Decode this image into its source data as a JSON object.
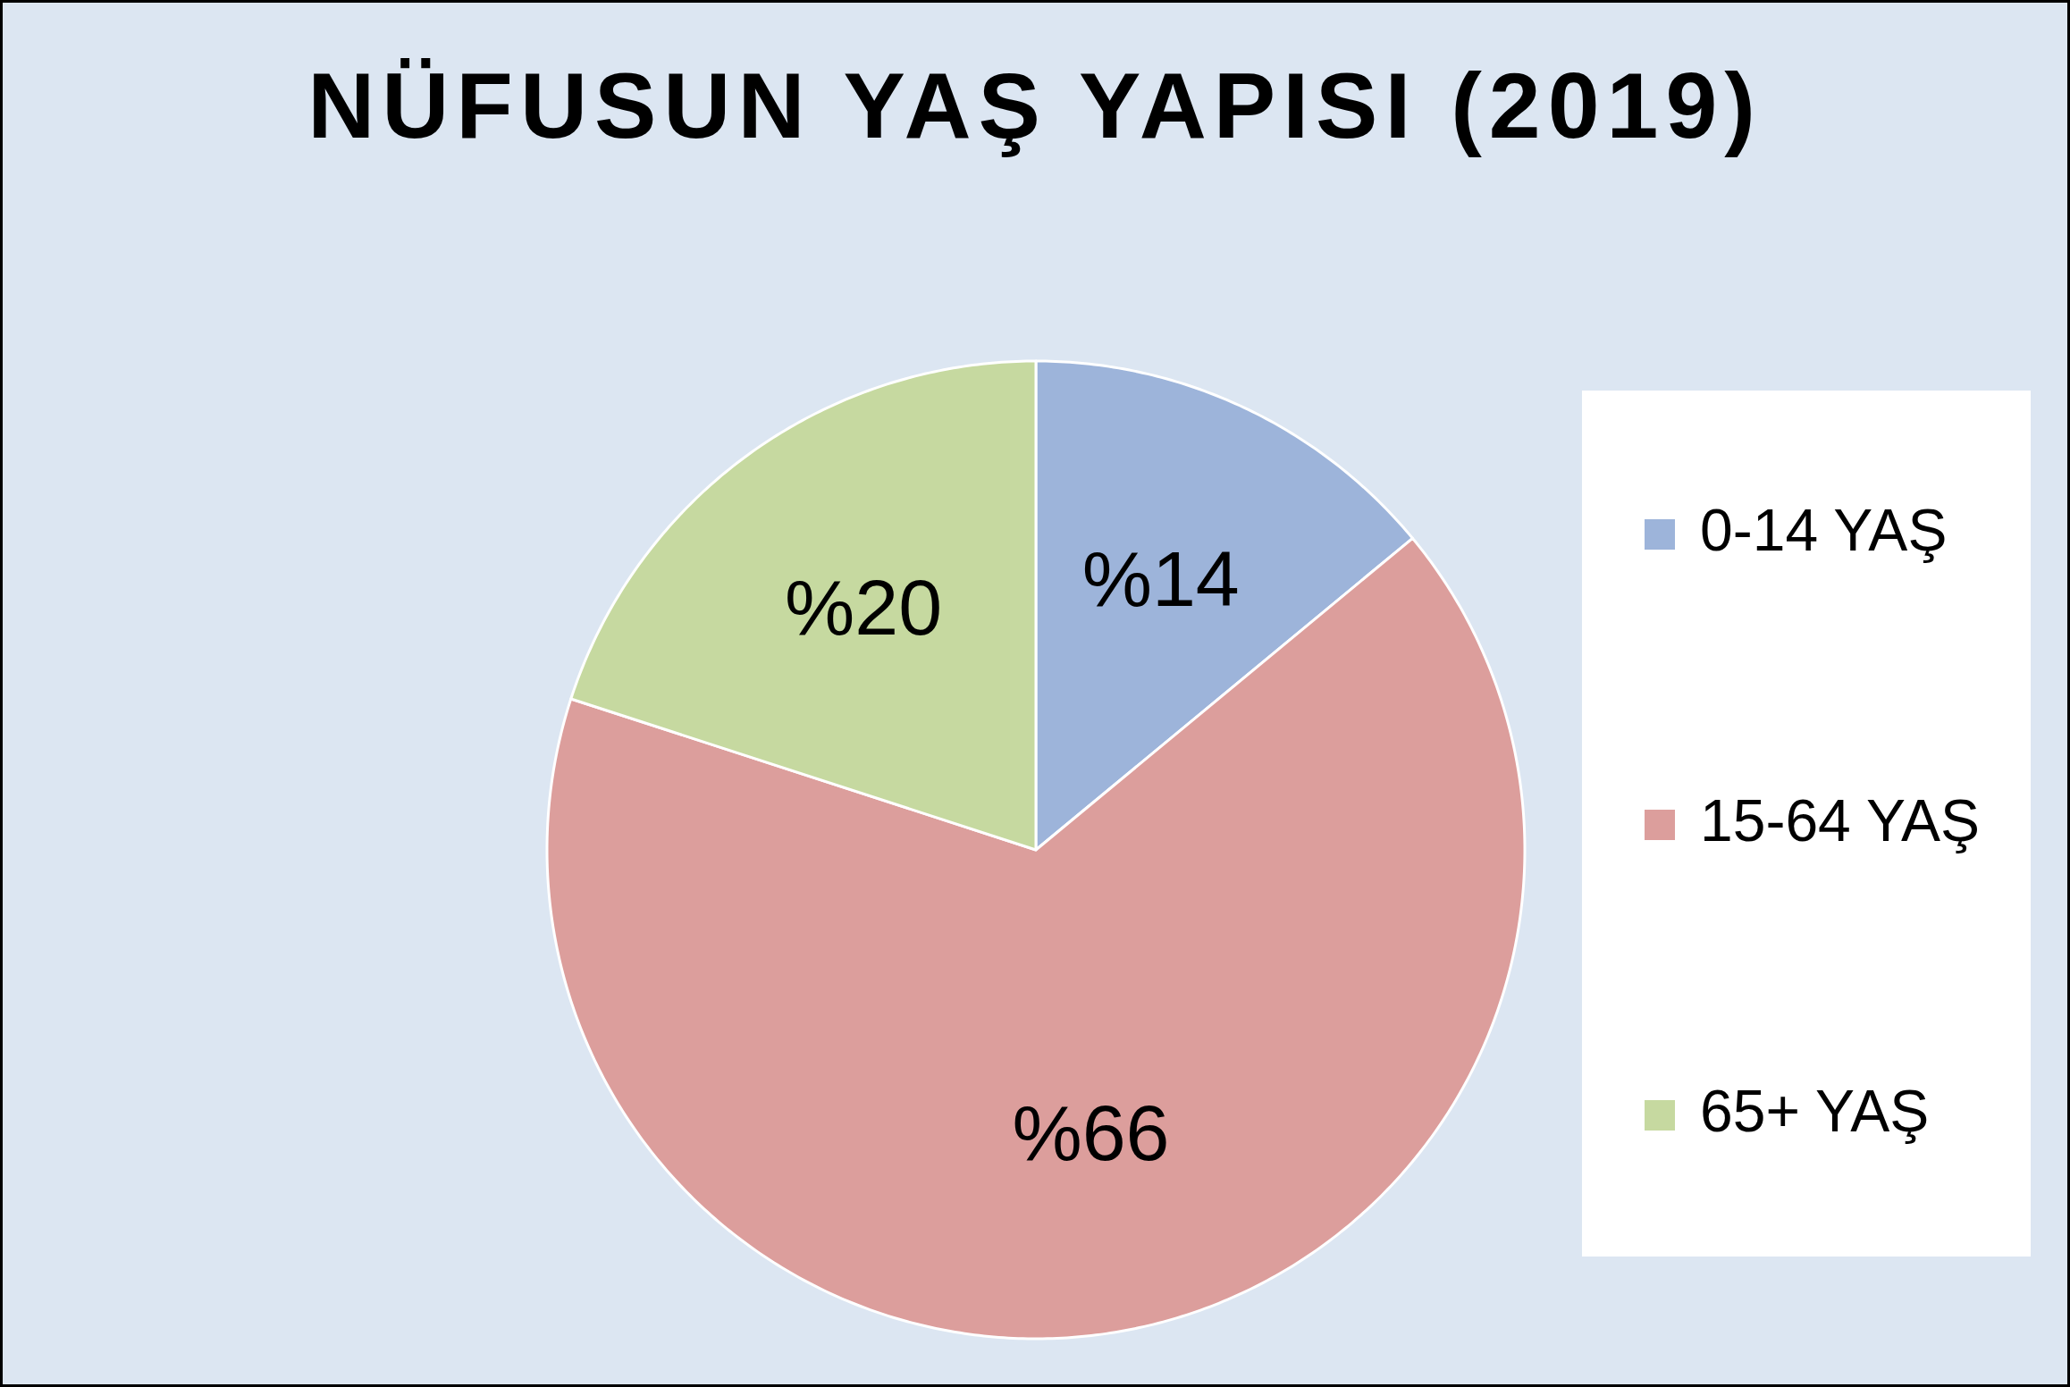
{
  "chart_data": {
    "type": "pie",
    "title": "NÜFUSUN YAŞ YAPISI (2019)",
    "categories": [
      "0-14 YAŞ",
      "15-64 YAŞ",
      "65+ YAŞ"
    ],
    "values": [
      14,
      66,
      20
    ],
    "colors": [
      "#9db4da",
      "#dc9e9c",
      "#c6d9a0"
    ],
    "value_labels": [
      "%14",
      "%66",
      "%20"
    ],
    "legend": "right"
  }
}
